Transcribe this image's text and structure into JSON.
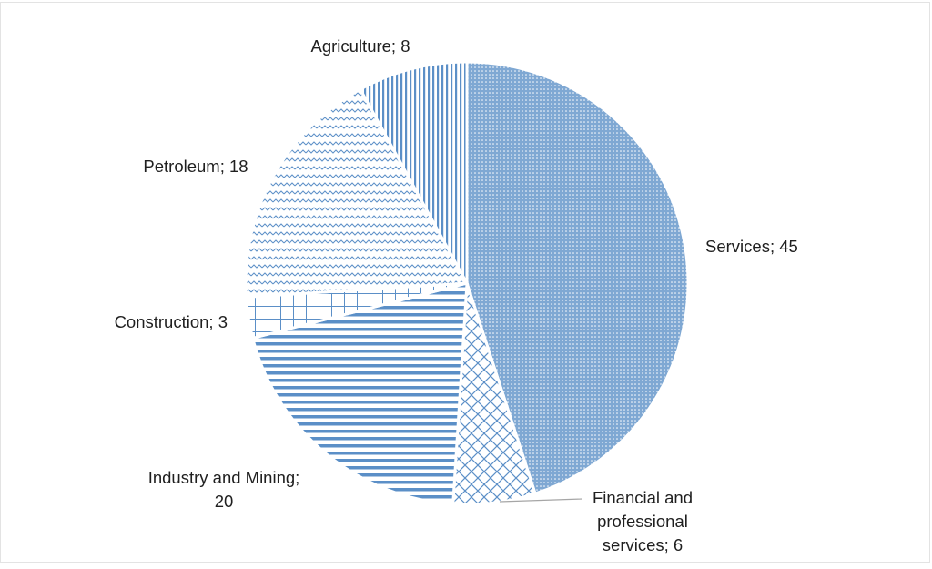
{
  "chart_data": {
    "type": "pie",
    "title": "",
    "unit": "percent",
    "slices": [
      {
        "label": "Services",
        "value": 45,
        "pattern": "dots",
        "label_lines": [
          "Services; 45"
        ]
      },
      {
        "label": "Financial and professional services",
        "value": 6,
        "pattern": "diamond-grid",
        "label_lines": [
          "Financial and",
          "professional",
          "services; 6"
        ]
      },
      {
        "label": "Industry and Mining",
        "value": 20,
        "pattern": "horizontal-lines",
        "label_lines": [
          "Industry and Mining;",
          "20"
        ]
      },
      {
        "label": "Construction",
        "value": 3,
        "pattern": "square-grid",
        "label_lines": [
          "Construction; 3"
        ]
      },
      {
        "label": "Petroleum",
        "value": 18,
        "pattern": "zigzag",
        "label_lines": [
          "Petroleum; 18"
        ]
      },
      {
        "label": "Agriculture",
        "value": 8,
        "pattern": "vertical-lines",
        "label_lines": [
          "Agriculture; 8"
        ]
      }
    ],
    "colors": {
      "pattern": "#5b8fc7",
      "background": "#ffffff",
      "leader_line": "#a6a6a6",
      "label_text": "#1f1f1f"
    },
    "legend": "none",
    "start_angle": "12 o'clock, clockwise"
  }
}
